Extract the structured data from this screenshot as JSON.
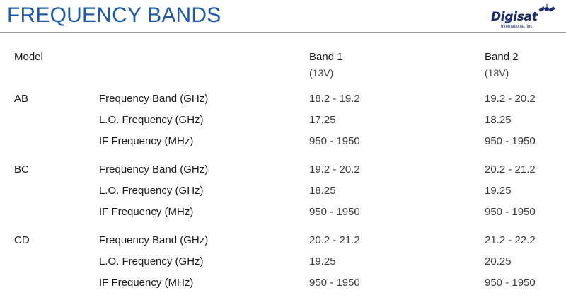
{
  "page": {
    "title": "FREQUENCY BANDS"
  },
  "logo": {
    "word": "Digisat",
    "subtitle": "International, Inc.",
    "icon": "satellite-icon"
  },
  "table": {
    "headers": {
      "model": "Model",
      "band1": "Band 1",
      "band1_sub": "(13V)",
      "band2": "Band 2",
      "band2_sub": "(18V)"
    },
    "groups": [
      {
        "model": "AB",
        "rows": [
          {
            "param": "Frequency Band (GHz)",
            "band1": "18.2 - 19.2",
            "band2": "19.2 - 20.2"
          },
          {
            "param": "L.O. Frequency (GHz)",
            "band1": "17.25",
            "band2": "18.25"
          },
          {
            "param": "IF Frequency (MHz)",
            "band1": "950 - 1950",
            "band2": "950 - 1950"
          }
        ]
      },
      {
        "model": "BC",
        "rows": [
          {
            "param": "Frequency Band (GHz)",
            "band1": "19.2 - 20.2",
            "band2": "20.2 - 21.2"
          },
          {
            "param": "L.O. Frequency (GHz)",
            "band1": "18.25",
            "band2": "19.25"
          },
          {
            "param": "IF Frequency (MHz)",
            "band1": "950 - 1950",
            "band2": "950 - 1950"
          }
        ]
      },
      {
        "model": "CD",
        "rows": [
          {
            "param": "Frequency Band (GHz)",
            "band1": "20.2 - 21.2",
            "band2": "21.2 - 22.2"
          },
          {
            "param": "L.O. Frequency (GHz)",
            "band1": "19.25",
            "band2": "20.25"
          },
          {
            "param": "IF Frequency (MHz)",
            "band1": "950 - 1950",
            "band2": "950 - 1950"
          }
        ]
      }
    ]
  },
  "colors": {
    "title": "#1f5aa8",
    "rule": "#9a9a9a",
    "logo": "#1a2a6c"
  }
}
